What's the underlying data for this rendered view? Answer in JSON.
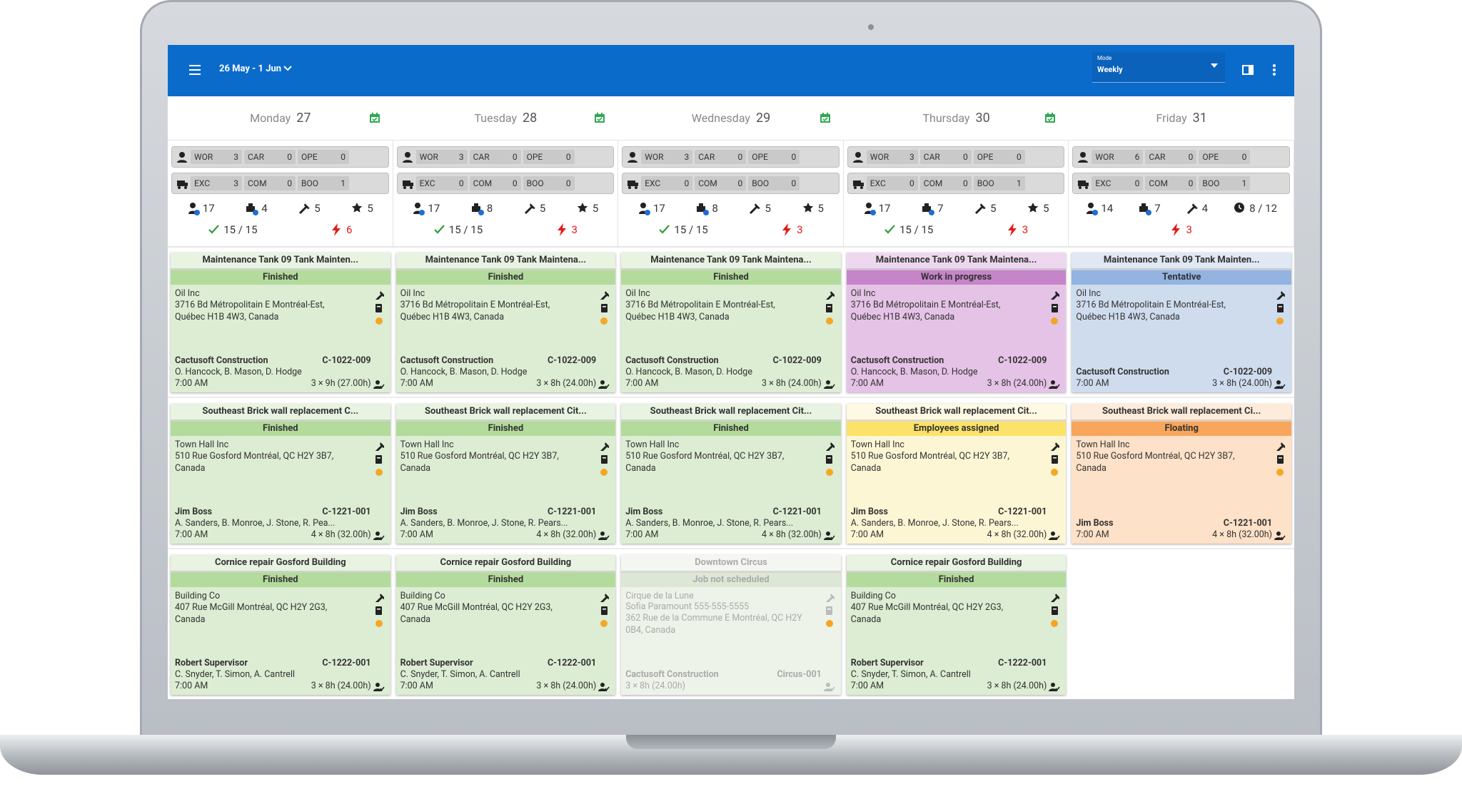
{
  "header": {
    "date_range": "26 May - 1 Jun",
    "mode_label": "Mode",
    "mode_value": "Weekly"
  },
  "days": [
    {
      "name": "Monday",
      "date": 27,
      "counters": [
        [
          {
            "label": "WOR",
            "value": 3
          },
          {
            "label": "CAR",
            "value": 0
          },
          {
            "label": "OPE",
            "value": 0
          }
        ],
        [
          {
            "label": "EXC",
            "value": 3
          },
          {
            "label": "COM",
            "value": 0
          },
          {
            "label": "BOO",
            "value": 1
          }
        ]
      ],
      "stats": {
        "people": 17,
        "equipment": 4,
        "tools": 5,
        "rating": 5,
        "completion": "15 / 15",
        "alerts": 6
      }
    },
    {
      "name": "Tuesday",
      "date": 28,
      "counters": [
        [
          {
            "label": "WOR",
            "value": 3
          },
          {
            "label": "CAR",
            "value": 0
          },
          {
            "label": "OPE",
            "value": 0
          }
        ],
        [
          {
            "label": "EXC",
            "value": 0
          },
          {
            "label": "COM",
            "value": 0
          },
          {
            "label": "BOO",
            "value": 0
          }
        ]
      ],
      "stats": {
        "people": 17,
        "equipment": 8,
        "tools": 5,
        "rating": 5,
        "completion": "15 / 15",
        "alerts": 3
      }
    },
    {
      "name": "Wednesday",
      "date": 29,
      "counters": [
        [
          {
            "label": "WOR",
            "value": 3
          },
          {
            "label": "CAR",
            "value": 0
          },
          {
            "label": "OPE",
            "value": 0
          }
        ],
        [
          {
            "label": "EXC",
            "value": 0
          },
          {
            "label": "COM",
            "value": 0
          },
          {
            "label": "BOO",
            "value": 0
          }
        ]
      ],
      "stats": {
        "people": 17,
        "equipment": 8,
        "tools": 5,
        "rating": 5,
        "completion": "15 / 15",
        "alerts": 3
      }
    },
    {
      "name": "Thursday",
      "date": 30,
      "counters": [
        [
          {
            "label": "WOR",
            "value": 3
          },
          {
            "label": "CAR",
            "value": 0
          },
          {
            "label": "OPE",
            "value": 0
          }
        ],
        [
          {
            "label": "EXC",
            "value": 0
          },
          {
            "label": "COM",
            "value": 0
          },
          {
            "label": "BOO",
            "value": 1
          }
        ]
      ],
      "stats": {
        "people": 17,
        "equipment": 7,
        "tools": 5,
        "rating": 5,
        "completion": "15 / 15",
        "alerts": 3
      }
    },
    {
      "name": "Friday",
      "date": 31,
      "counters": [
        [
          {
            "label": "WOR",
            "value": 6
          },
          {
            "label": "CAR",
            "value": 0
          },
          {
            "label": "OPE",
            "value": 0
          }
        ],
        [
          {
            "label": "EXC",
            "value": 0
          },
          {
            "label": "COM",
            "value": 0
          },
          {
            "label": "BOO",
            "value": 1
          }
        ]
      ],
      "stats": {
        "people": 14,
        "equipment": 7,
        "tools": 4,
        "capacity": "8 / 12",
        "alerts": 3
      }
    }
  ],
  "jobs": [
    [
      {
        "title": "Maintenance Tank 09 Tank Mainten...",
        "status": "Finished",
        "colors": {
          "body": "#dcedd3",
          "bar": "#b3db9c"
        },
        "client": "Oil Inc",
        "address": "3716 Bd Métropolitain E Montréal-Est, Québec H1B 4W3, Canada",
        "company": "Cactusoft Construction",
        "code": "C-1022-009",
        "crew": "O. Hancock, B. Mason, D. Hodge",
        "time": "7:00 AM",
        "duration": "3 × 9h (27.00h)"
      },
      {
        "title": "Maintenance Tank 09 Tank Maintena...",
        "status": "Finished",
        "colors": {
          "body": "#dcedd3",
          "bar": "#b3db9c"
        },
        "client": "Oil Inc",
        "address": "3716 Bd Métropolitain E Montréal-Est, Québec H1B 4W3, Canada",
        "company": "Cactusoft Construction",
        "code": "C-1022-009",
        "crew": "O. Hancock, B. Mason, D. Hodge",
        "time": "7:00 AM",
        "duration": "3 × 8h (24.00h)"
      },
      {
        "title": "Maintenance Tank 09 Tank Maintena...",
        "status": "Finished",
        "colors": {
          "body": "#dcedd3",
          "bar": "#b3db9c"
        },
        "client": "Oil Inc",
        "address": "3716 Bd Métropolitain E Montréal-Est, Québec H1B 4W3, Canada",
        "company": "Cactusoft Construction",
        "code": "C-1022-009",
        "crew": "O. Hancock, B. Mason, D. Hodge",
        "time": "7:00 AM",
        "duration": "3 × 8h (24.00h)"
      },
      {
        "title": "Maintenance Tank 09 Tank Maintena...",
        "status": "Work in progress",
        "colors": {
          "body": "#e5c3e6",
          "bar": "#c684c9"
        },
        "client": "Oil Inc",
        "address": "3716 Bd Métropolitain E Montréal-Est, Québec H1B 4W3, Canada",
        "company": "Cactusoft Construction",
        "code": "C-1022-009",
        "crew": "O. Hancock, B. Mason, D. Hodge",
        "time": "7:00 AM",
        "duration": "3 × 8h (24.00h)"
      },
      {
        "title": "Maintenance Tank 09 Tank Mainten...",
        "status": "Tentative",
        "colors": {
          "body": "#cfdcee",
          "bar": "#93b3e1"
        },
        "client": "Oil Inc",
        "address": "3716 Bd Métropolitain E Montréal-Est, Québec H1B 4W3, Canada",
        "company": "Cactusoft Construction",
        "code": "C-1022-009",
        "time": "7:00 AM",
        "duration": "3 × 8h (24.00h)"
      }
    ],
    [
      {
        "title": "Southeast Brick wall replacement C...",
        "status": "Finished",
        "colors": {
          "body": "#dcedd3",
          "bar": "#b3db9c"
        },
        "client": "Town Hall Inc",
        "address": "510 Rue Gosford Montréal, QC H2Y 3B7, Canada",
        "company": "Jim Boss",
        "code": "C-1221-001",
        "crew": "A. Sanders, B. Monroe, J. Stone, R. Pea...",
        "time": "7:00 AM",
        "duration": "4 × 8h (32.00h)"
      },
      {
        "title": "Southeast Brick wall replacement Cit...",
        "status": "Finished",
        "colors": {
          "body": "#dcedd3",
          "bar": "#b3db9c"
        },
        "client": "Town Hall Inc",
        "address": "510 Rue Gosford Montréal, QC H2Y 3B7, Canada",
        "company": "Jim Boss",
        "code": "C-1221-001",
        "crew": "A. Sanders, B. Monroe, J. Stone, R. Pears...",
        "time": "7:00 AM",
        "duration": "4 × 8h (32.00h)"
      },
      {
        "title": "Southeast Brick wall replacement Cit...",
        "status": "Finished",
        "colors": {
          "body": "#dcedd3",
          "bar": "#b3db9c"
        },
        "client": "Town Hall Inc",
        "address": "510 Rue Gosford Montréal, QC H2Y 3B7, Canada",
        "company": "Jim Boss",
        "code": "C-1221-001",
        "crew": "A. Sanders, B. Monroe, J. Stone, R. Pears...",
        "time": "7:00 AM",
        "duration": "4 × 8h (32.00h)"
      },
      {
        "title": "Southeast Brick wall replacement Cit...",
        "status": "Employees assigned",
        "colors": {
          "body": "#fdf6d5",
          "bar": "#fbe36a"
        },
        "client": "Town Hall Inc",
        "address": "510 Rue Gosford Montréal, QC H2Y 3B7, Canada",
        "company": "Jim Boss",
        "code": "C-1221-001",
        "crew": "A. Sanders, B. Monroe, J. Stone, R. Pears...",
        "time": "7:00 AM",
        "duration": "4 × 8h (32.00h)"
      },
      {
        "title": "Southeast Brick wall replacement Ci...",
        "status": "Floating",
        "colors": {
          "body": "#fde1c8",
          "bar": "#f8a65b"
        },
        "client": "Town Hall Inc",
        "address": "510 Rue Gosford Montréal, QC H2Y 3B7, Canada",
        "company": "Jim Boss",
        "code": "C-1221-001",
        "time": "7:00 AM",
        "duration": "4 × 8h (32.00h)"
      }
    ],
    [
      {
        "title": "Cornice repair Gosford Building",
        "status": "Finished",
        "colors": {
          "body": "#dcedd3",
          "bar": "#b3db9c"
        },
        "client": "Building Co",
        "address": "407 Rue McGill Montréal, QC H2Y 2G3, Canada",
        "company": "Robert Supervisor",
        "code": "C-1222-001",
        "crew": "C. Snyder, T. Simon, A. Cantrell",
        "time": "7:00 AM",
        "duration": "3 × 8h (24.00h)"
      },
      {
        "title": "Cornice repair Gosford Building",
        "status": "Finished",
        "colors": {
          "body": "#dcedd3",
          "bar": "#b3db9c"
        },
        "client": "Building Co",
        "address": "407 Rue McGill Montréal, QC H2Y 2G3, Canada",
        "company": "Robert Supervisor",
        "code": "C-1222-001",
        "crew": "C. Snyder, T. Simon, A. Cantrell",
        "time": "7:00 AM",
        "duration": "3 × 8h (24.00h)"
      },
      {
        "title": "Downtown Circus",
        "status": "Job not scheduled",
        "colors": {
          "body": "#eef3ea",
          "bar": "#dde7d6"
        },
        "client": "Cirque de la Lune",
        "contact": "Sofia Paramount 555-555-5555",
        "address": "362 Rue de la Commune E Montréal, QC H2Y 0B4, Canada",
        "company": "Cactusoft Construction",
        "code": "Circus-001",
        "duration": "3 × 8h (24.00h)"
      },
      {
        "title": "Cornice repair Gosford Building",
        "status": "Finished",
        "colors": {
          "body": "#dcedd3",
          "bar": "#b3db9c"
        },
        "client": "Building Co",
        "address": "407 Rue McGill Montréal, QC H2Y 2G3, Canada",
        "company": "Robert Supervisor",
        "code": "C-1222-001",
        "crew": "C. Snyder, T. Simon, A. Cantrell",
        "time": "7:00 AM",
        "duration": "3 × 8h (24.00h)"
      }
    ]
  ]
}
